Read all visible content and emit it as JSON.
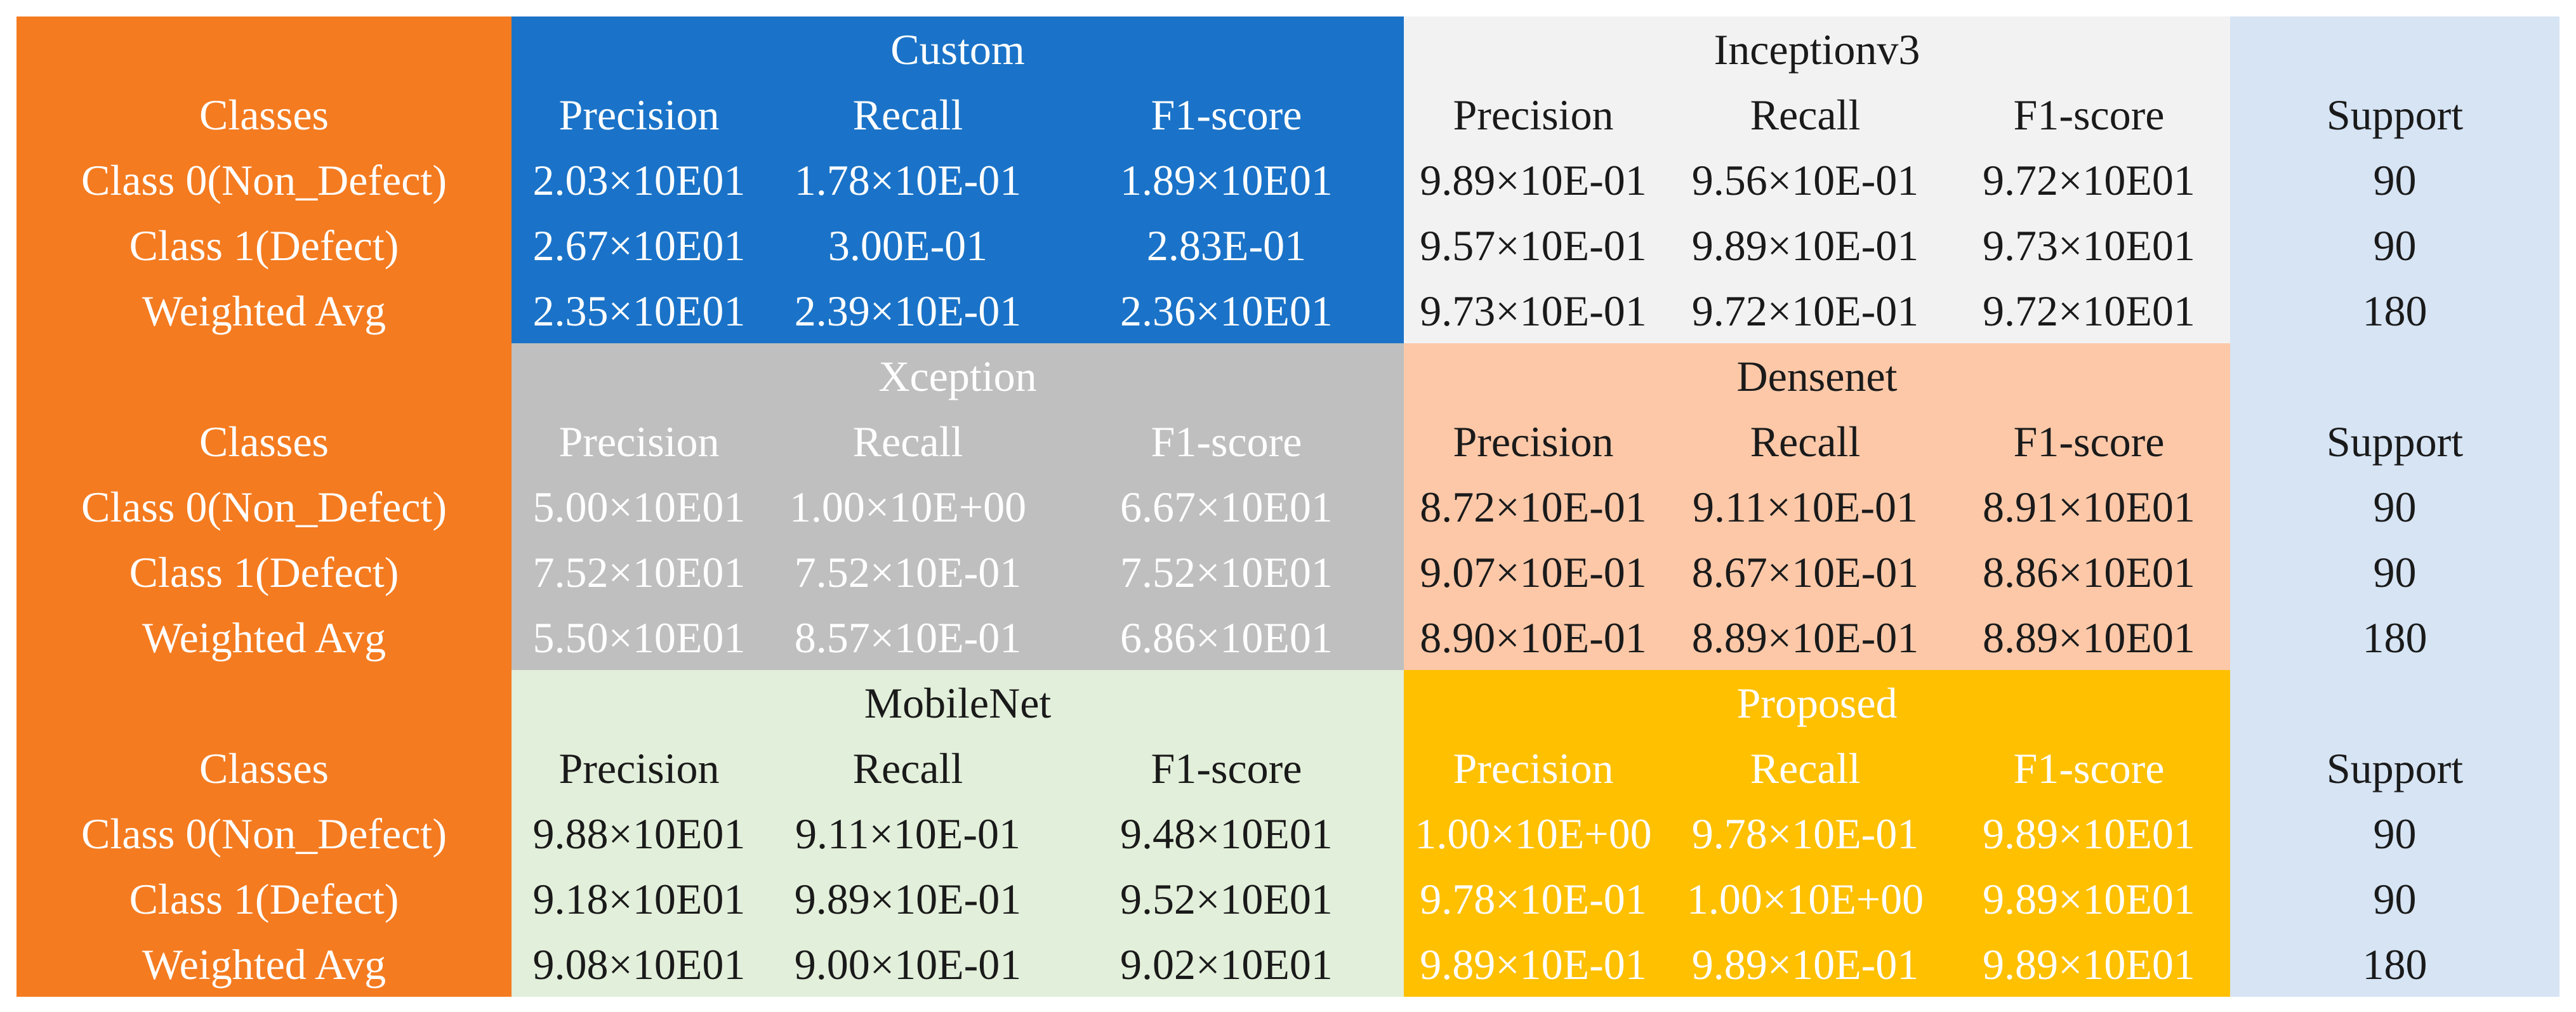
{
  "colors": {
    "classes_bg": "#F47B20",
    "custom_bg": "#1A73C8",
    "inceptionv3_bg": "#F2F2F2",
    "xception_bg": "#BFBFBF",
    "densenet_bg": "#FCC8A8",
    "mobilenet_bg": "#E2EFDA",
    "proposed_bg": "#FFC000",
    "support_bg": "#D6E4F4"
  },
  "table": {
    "classes_header": "Classes",
    "support_header": "Support",
    "metric_headers": [
      "Precision",
      "Recall",
      "F1-score"
    ],
    "row_labels": [
      "Class 0(Non_Defect)",
      "Class 1(Defect)",
      "Weighted Avg"
    ],
    "blocks": [
      {
        "support": [
          "90",
          "90",
          "180"
        ],
        "models": [
          {
            "name": "Custom",
            "rows": [
              [
                "2.03×10E01",
                "1.78×10E-01",
                "1.89×10E01"
              ],
              [
                "2.67×10E01",
                "3.00E-01",
                "2.83E-01"
              ],
              [
                "2.35×10E01",
                "2.39×10E-01",
                "2.36×10E01"
              ]
            ]
          },
          {
            "name": "Inceptionv3",
            "rows": [
              [
                "9.89×10E-01",
                "9.56×10E-01",
                "9.72×10E01"
              ],
              [
                "9.57×10E-01",
                "9.89×10E-01",
                "9.73×10E01"
              ],
              [
                "9.73×10E-01",
                "9.72×10E-01",
                "9.72×10E01"
              ]
            ]
          }
        ]
      },
      {
        "support": [
          "90",
          "90",
          "180"
        ],
        "models": [
          {
            "name": "Xception",
            "rows": [
              [
                "5.00×10E01",
                "1.00×10E+00",
                "6.67×10E01"
              ],
              [
                "7.52×10E01",
                "7.52×10E-01",
                "7.52×10E01"
              ],
              [
                "5.50×10E01",
                "8.57×10E-01",
                "6.86×10E01"
              ]
            ]
          },
          {
            "name": "Densenet",
            "rows": [
              [
                "8.72×10E-01",
                "9.11×10E-01",
                "8.91×10E01"
              ],
              [
                "9.07×10E-01",
                "8.67×10E-01",
                "8.86×10E01"
              ],
              [
                "8.90×10E-01",
                "8.89×10E-01",
                "8.89×10E01"
              ]
            ]
          }
        ]
      },
      {
        "support": [
          "90",
          "90",
          "180"
        ],
        "models": [
          {
            "name": "MobileNet",
            "rows": [
              [
                "9.88×10E01",
                "9.11×10E-01",
                "9.48×10E01"
              ],
              [
                "9.18×10E01",
                "9.89×10E-01",
                "9.52×10E01"
              ],
              [
                "9.08×10E01",
                "9.00×10E-01",
                "9.02×10E01"
              ]
            ]
          },
          {
            "name": "Proposed",
            "rows": [
              [
                "1.00×10E+00",
                "9.78×10E-01",
                "9.89×10E01"
              ],
              [
                "9.78×10E-01",
                "1.00×10E+00",
                "9.89×10E01"
              ],
              [
                "9.89×10E-01",
                "9.89×10E-01",
                "9.89×10E01"
              ]
            ]
          }
        ]
      }
    ]
  }
}
